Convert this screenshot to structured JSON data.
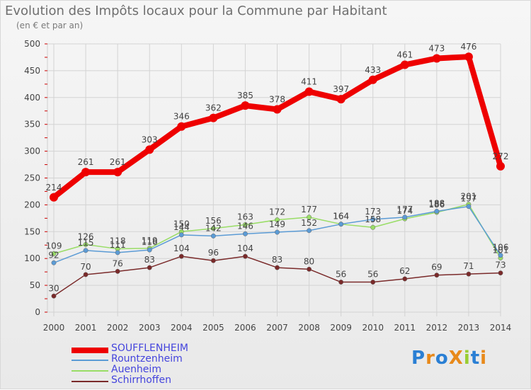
{
  "header": {
    "title": "Evolution des Impôts locaux pour la Commune par Habitant",
    "subtitle": "(en € et par an)"
  },
  "logo": {
    "text": "ProXiti"
  },
  "chart_data": {
    "type": "line",
    "x": [
      "2000",
      "2001",
      "2002",
      "2003",
      "2004",
      "2005",
      "2006",
      "2007",
      "2008",
      "2009",
      "2010",
      "2011",
      "2012",
      "2013",
      "2014"
    ],
    "ylim": [
      0,
      500
    ],
    "yticks": [
      0,
      50,
      100,
      150,
      200,
      250,
      300,
      350,
      400,
      450,
      500
    ],
    "grid": true,
    "legend_position": "bottom-left",
    "series": [
      {
        "name": "SOUFFLENHEIM",
        "color": "#ee0000",
        "values": [
          214,
          261,
          261,
          303,
          346,
          362,
          385,
          378,
          411,
          397,
          433,
          461,
          473,
          476,
          272
        ]
      },
      {
        "name": "Rountzenheim",
        "color": "#5b9bd5",
        "values": [
          92,
          115,
          111,
          116,
          144,
          142,
          146,
          149,
          152,
          164,
          173,
          177,
          188,
          197,
          106
        ]
      },
      {
        "name": "Auenheim",
        "color": "#99dd66",
        "values": [
          109,
          126,
          118,
          119,
          150,
          156,
          163,
          172,
          177,
          164,
          158,
          174,
          186,
          201,
          101
        ]
      },
      {
        "name": "Schirrhoffen",
        "color": "#7a2a2a",
        "values": [
          30,
          70,
          76,
          83,
          104,
          96,
          104,
          83,
          80,
          56,
          56,
          62,
          69,
          71,
          73
        ]
      }
    ]
  }
}
